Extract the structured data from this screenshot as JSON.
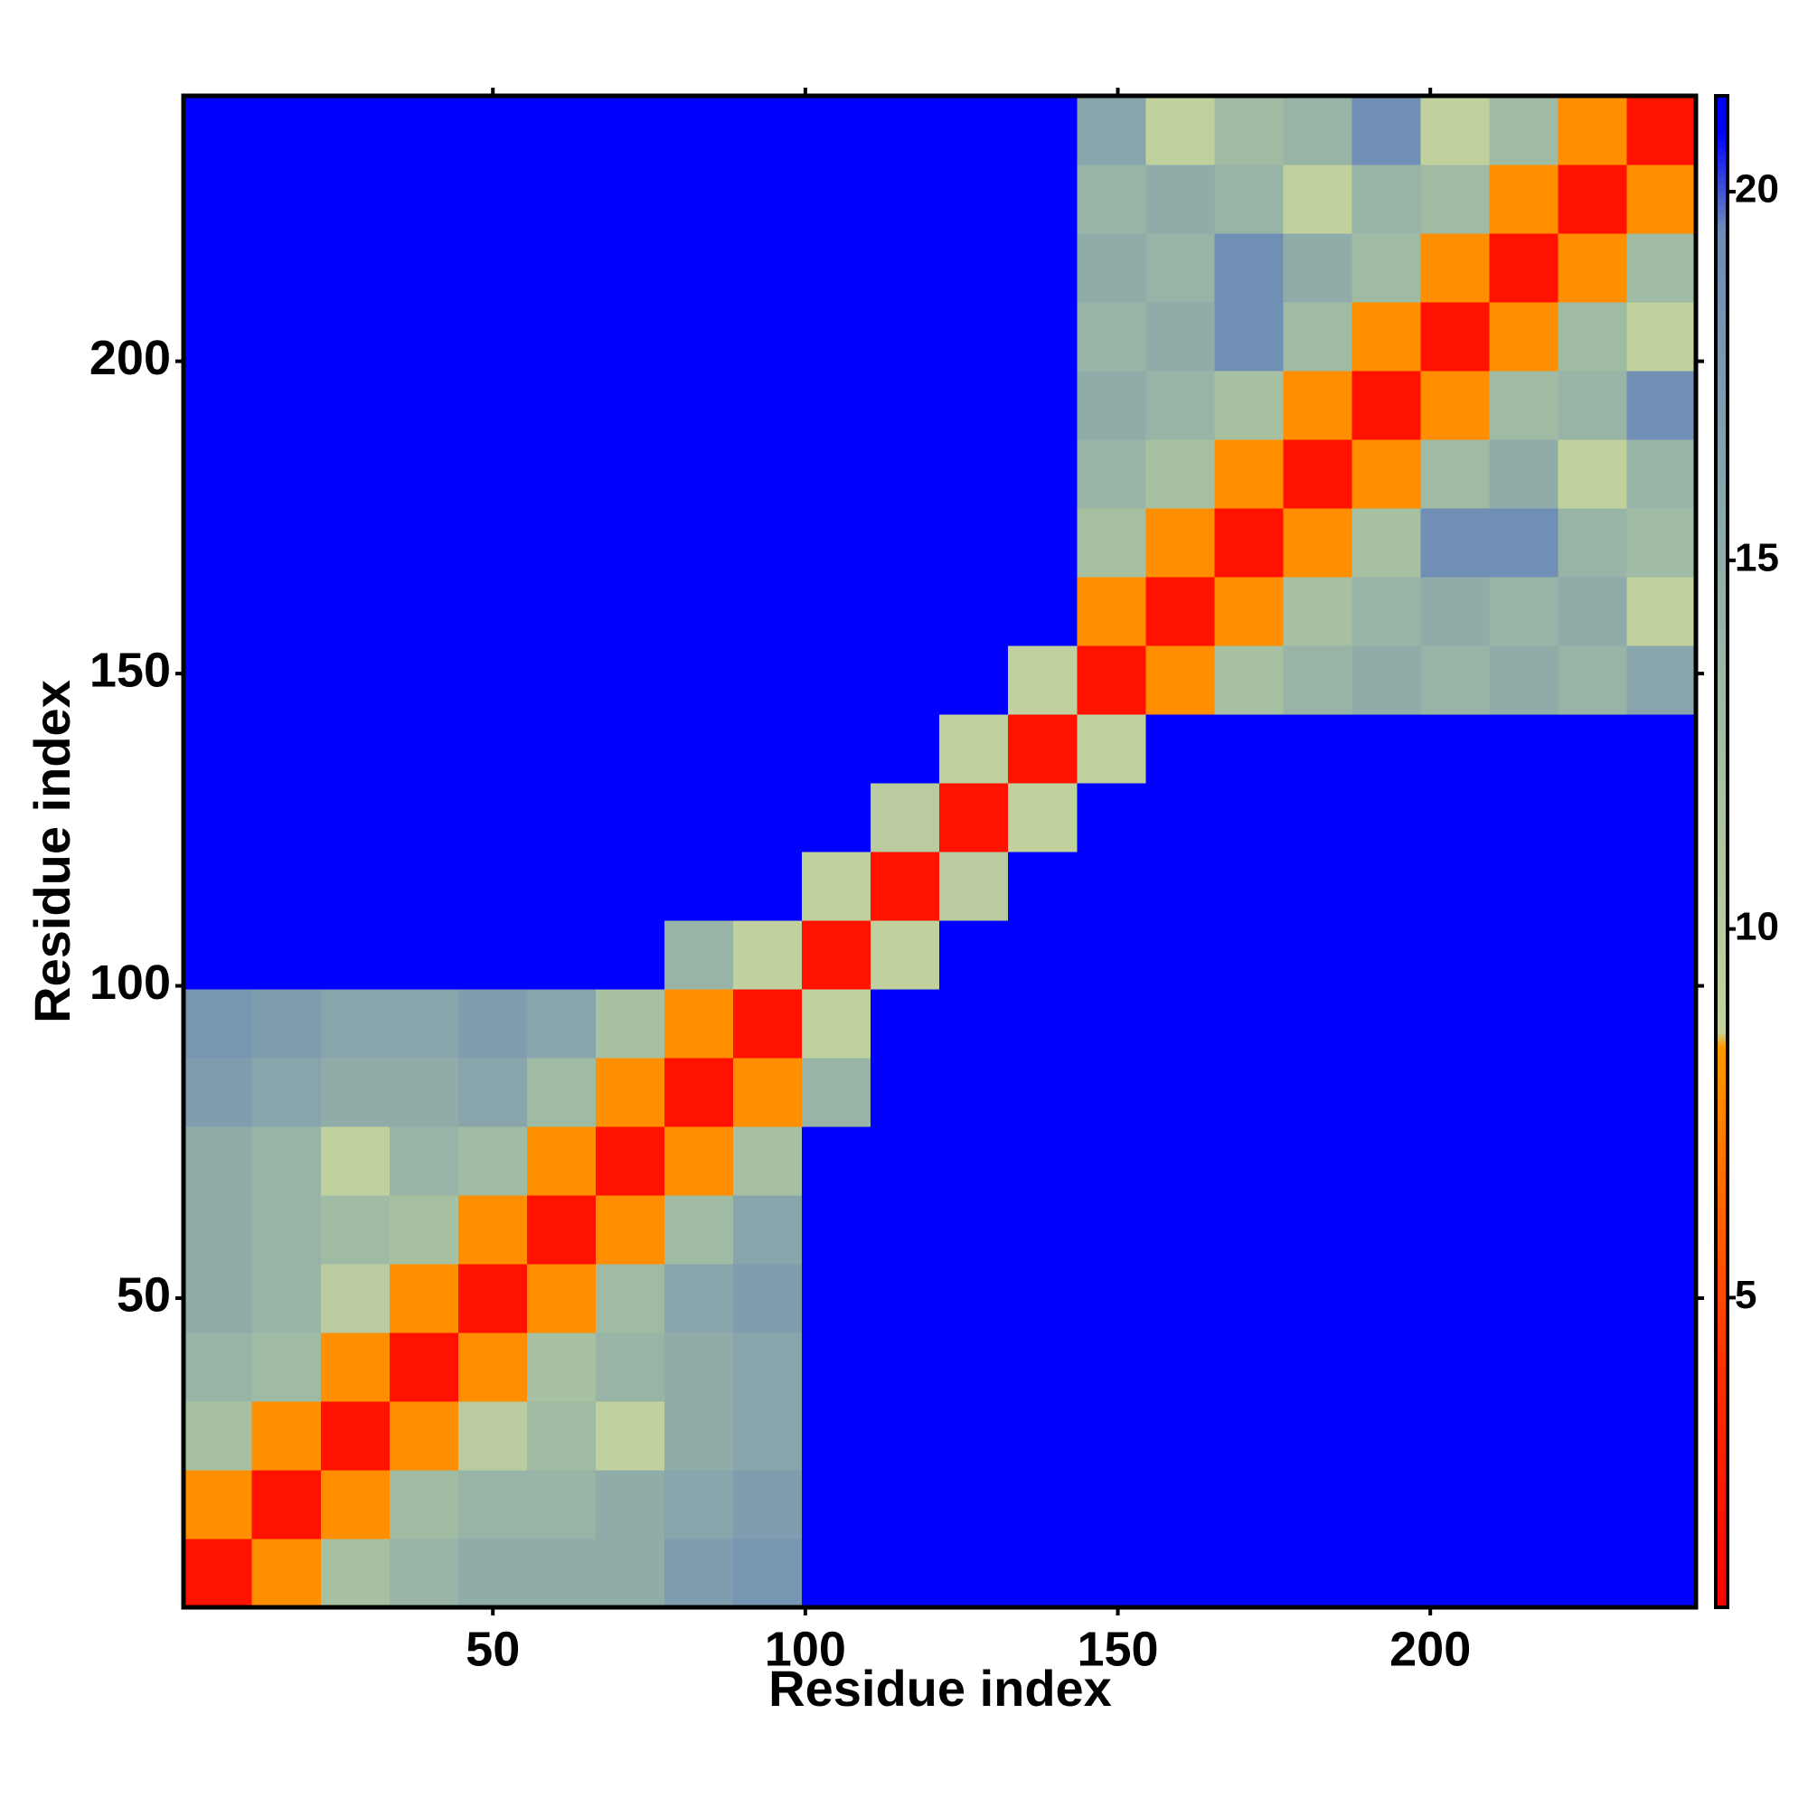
{
  "chart_data": {
    "type": "heatmap",
    "x_label": "Residue index",
    "y_label": "Residue index",
    "xlim": [
      0.5,
      242.5
    ],
    "ylim": [
      0.5,
      242.5
    ],
    "xticks": [
      50,
      100,
      150,
      200
    ],
    "yticks": [
      50,
      100,
      150,
      200
    ],
    "xbins": [
      0.5,
      11.5,
      22.5,
      33.5,
      44.5,
      55.5,
      66.5,
      77.5,
      88.5,
      99.5,
      110.5,
      121.5,
      132.5,
      143.5,
      154.5,
      165.5,
      176.5,
      187.5,
      198.5,
      209.5,
      220.5,
      231.5,
      242.5
    ],
    "ybins": [
      0.5,
      11.5,
      22.5,
      33.5,
      44.5,
      55.5,
      66.5,
      77.5,
      88.5,
      99.5,
      110.5,
      121.5,
      132.5,
      143.5,
      154.5,
      165.5,
      176.5,
      187.5,
      198.5,
      209.5,
      220.5,
      231.5,
      242.5
    ],
    "z": [
      [
        2,
        8,
        12,
        14,
        15,
        15,
        15,
        17,
        18,
        21,
        21,
        21,
        21,
        21,
        21,
        21,
        21,
        21,
        21,
        21,
        21,
        21
      ],
      [
        8,
        2,
        8,
        13,
        14,
        14,
        15,
        16,
        17,
        21,
        21,
        21,
        21,
        21,
        21,
        21,
        21,
        21,
        21,
        21,
        21,
        21
      ],
      [
        12,
        8,
        2,
        8,
        10,
        13,
        9,
        15,
        16,
        21,
        21,
        21,
        21,
        21,
        21,
        21,
        21,
        21,
        21,
        21,
        21,
        21
      ],
      [
        14,
        13,
        8,
        2,
        8,
        12,
        14,
        15,
        16,
        21,
        21,
        21,
        21,
        21,
        21,
        21,
        21,
        21,
        21,
        21,
        21,
        21
      ],
      [
        15,
        14,
        10,
        8,
        2,
        8,
        13,
        16,
        17,
        21,
        21,
        21,
        21,
        21,
        21,
        21,
        21,
        21,
        21,
        21,
        21,
        21
      ],
      [
        15,
        14,
        13,
        12,
        8,
        2,
        8,
        13,
        16,
        21,
        21,
        21,
        21,
        21,
        21,
        21,
        21,
        21,
        21,
        21,
        21,
        21
      ],
      [
        15,
        14,
        9,
        14,
        13,
        8,
        2,
        8,
        12,
        21,
        21,
        21,
        21,
        21,
        21,
        21,
        21,
        21,
        21,
        21,
        21,
        21
      ],
      [
        17,
        16,
        15,
        15,
        16,
        13,
        8,
        2,
        8,
        14,
        21,
        21,
        21,
        21,
        21,
        21,
        21,
        21,
        21,
        21,
        21,
        21
      ],
      [
        18,
        17,
        16,
        16,
        17,
        16,
        12,
        8,
        2,
        9,
        21,
        21,
        21,
        21,
        21,
        21,
        21,
        21,
        21,
        21,
        21,
        21
      ],
      [
        21,
        21,
        21,
        21,
        21,
        21,
        21,
        14,
        9,
        2,
        9,
        21,
        21,
        21,
        21,
        21,
        21,
        21,
        21,
        21,
        21,
        21
      ],
      [
        21,
        21,
        21,
        21,
        21,
        21,
        21,
        21,
        21,
        9,
        2,
        10,
        21,
        21,
        21,
        21,
        21,
        21,
        21,
        21,
        21,
        21
      ],
      [
        21,
        21,
        21,
        21,
        21,
        21,
        21,
        21,
        21,
        21,
        10,
        2,
        9,
        21,
        21,
        21,
        21,
        21,
        21,
        21,
        21,
        21
      ],
      [
        21,
        21,
        21,
        21,
        21,
        21,
        21,
        21,
        21,
        21,
        21,
        9,
        2,
        9,
        21,
        21,
        21,
        21,
        21,
        21,
        21,
        21
      ],
      [
        21,
        21,
        21,
        21,
        21,
        21,
        21,
        21,
        21,
        21,
        21,
        21,
        9,
        2,
        8,
        12,
        14,
        15,
        14,
        15,
        14,
        16
      ],
      [
        21,
        21,
        21,
        21,
        21,
        21,
        21,
        21,
        21,
        21,
        21,
        21,
        21,
        8,
        2,
        8,
        12,
        14,
        15,
        14,
        15,
        9
      ],
      [
        21,
        21,
        21,
        21,
        21,
        21,
        21,
        21,
        21,
        21,
        21,
        21,
        21,
        12,
        8,
        2,
        8,
        12,
        19,
        19,
        14,
        13
      ],
      [
        21,
        21,
        21,
        21,
        21,
        21,
        21,
        21,
        21,
        21,
        21,
        21,
        21,
        14,
        12,
        8,
        2,
        8,
        13,
        15,
        9,
        14
      ],
      [
        21,
        21,
        21,
        21,
        21,
        21,
        21,
        21,
        21,
        21,
        21,
        21,
        21,
        15,
        14,
        12,
        8,
        2,
        8,
        13,
        14,
        19
      ],
      [
        21,
        21,
        21,
        21,
        21,
        21,
        21,
        21,
        21,
        21,
        21,
        21,
        21,
        14,
        15,
        19,
        13,
        8,
        2,
        8,
        13,
        9
      ],
      [
        21,
        21,
        21,
        21,
        21,
        21,
        21,
        21,
        21,
        21,
        21,
        21,
        21,
        15,
        14,
        19,
        15,
        13,
        8,
        2,
        8,
        13
      ],
      [
        21,
        21,
        21,
        21,
        21,
        21,
        21,
        21,
        21,
        21,
        21,
        21,
        21,
        14,
        15,
        14,
        9,
        14,
        13,
        8,
        2,
        8
      ],
      [
        21,
        21,
        21,
        21,
        21,
        21,
        21,
        21,
        21,
        21,
        21,
        21,
        21,
        16,
        9,
        13,
        14,
        19,
        9,
        13,
        8,
        2
      ]
    ],
    "clim": [
      0.8,
      21.3
    ],
    "cticks": [
      5,
      10,
      15,
      20
    ],
    "colorscale": [
      [
        0.8,
        "#ff0000"
      ],
      [
        4,
        "#ff3000"
      ],
      [
        8.4,
        "#ff9900"
      ],
      [
        8.6,
        "#c4d39c"
      ],
      [
        13,
        "#a0bba4"
      ],
      [
        19.5,
        "#6b8bb5"
      ],
      [
        20.8,
        "#0000ff"
      ]
    ]
  }
}
